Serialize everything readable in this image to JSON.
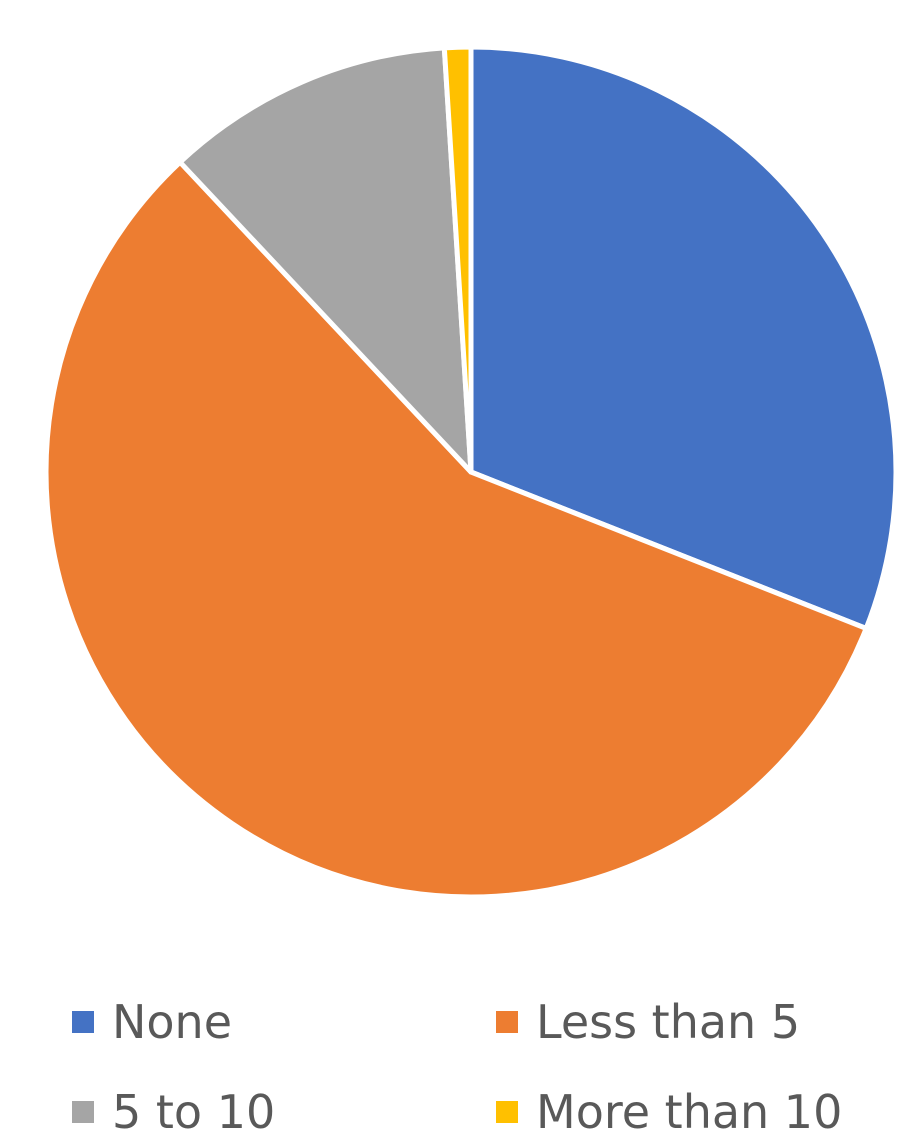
{
  "chart_data": {
    "type": "pie",
    "title": "",
    "start_angle_deg": 0,
    "direction": "clockwise",
    "legend_position": "bottom",
    "slices": [
      {
        "label": "None",
        "value": 31,
        "color": "#4472C4"
      },
      {
        "label": "Less than 5",
        "value": 57,
        "color": "#ED7D31"
      },
      {
        "label": "5 to 10",
        "value": 11,
        "color": "#A5A5A5"
      },
      {
        "label": "More than 10",
        "value": 1,
        "color": "#FFC000"
      }
    ]
  }
}
